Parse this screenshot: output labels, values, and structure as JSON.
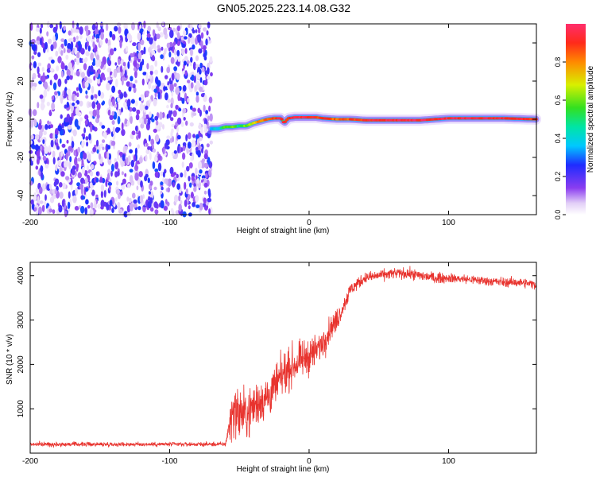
{
  "title": "GN05.2025.223.14.08.G32",
  "chart_data": [
    {
      "type": "heatmap",
      "xlabel": "Height of straight line (km)",
      "ylabel": "Frequency (Hz)",
      "xlim": [
        -200,
        163
      ],
      "ylim": [
        -50,
        50
      ],
      "x_ticks": [
        "-200",
        "-100",
        "0",
        "100"
      ],
      "y_ticks": [
        "-40",
        "-20",
        "0",
        "20",
        "40"
      ],
      "colorbar": {
        "label": "Normalized spectral amplitude",
        "range": [
          0,
          1
        ],
        "ticks": [
          "0.0",
          "0.2",
          "0.4",
          "0.6",
          "0.8"
        ]
      },
      "noise_region_x": [
        -200,
        -70
      ],
      "signal_trace": {
        "x": [
          -70,
          -65,
          -60,
          -55,
          -50,
          -45,
          -40,
          -35,
          -30,
          -25,
          -20,
          -18,
          -15,
          -10,
          -5,
          0,
          5,
          10,
          20,
          30,
          40,
          60,
          80,
          100,
          120,
          140,
          163
        ],
        "frequency": [
          -5,
          -5,
          -4,
          -4,
          -3.5,
          -3.5,
          -2,
          -1,
          0,
          0.5,
          0.5,
          -2,
          0.5,
          1,
          1,
          1,
          1,
          0.5,
          0,
          0,
          -0.5,
          -0.5,
          -0.5,
          0.5,
          0.5,
          0.5,
          0
        ],
        "amplitude": [
          0.35,
          0.4,
          0.55,
          0.6,
          0.5,
          0.6,
          0.7,
          0.8,
          0.85,
          0.9,
          0.95,
          0.9,
          0.9,
          0.95,
          0.95,
          0.95,
          0.9,
          0.9,
          0.85,
          0.85,
          0.9,
          0.95,
          0.95,
          0.95,
          0.95,
          0.95,
          0.9
        ]
      }
    },
    {
      "type": "line",
      "xlabel": "Height of straight line (km)",
      "ylabel": "SNR (10 * v/v)",
      "xlim": [
        -200,
        163
      ],
      "ylim": [
        0,
        4300
      ],
      "x_ticks": [
        "-200",
        "-100",
        "0",
        "100"
      ],
      "y_ticks": [
        "1000",
        "2000",
        "3000",
        "4000"
      ],
      "color": "#e8332e",
      "series": [
        {
          "x": [
            -200,
            -150,
            -100,
            -60,
            -55,
            -50,
            -45,
            -40,
            -35,
            -30,
            -25,
            -20,
            -15,
            -10,
            -5,
            0,
            5,
            10,
            15,
            20,
            25,
            30,
            40,
            50,
            60,
            70,
            80,
            90,
            100,
            120,
            140,
            150,
            163
          ],
          "values": [
            200,
            200,
            200,
            200,
            950,
            900,
            850,
            1050,
            1200,
            1250,
            1450,
            1700,
            1900,
            2000,
            2100,
            2200,
            2300,
            2500,
            2800,
            3000,
            3350,
            3700,
            3950,
            4000,
            4050,
            4050,
            4000,
            3950,
            3950,
            3900,
            3850,
            3850,
            3800
          ],
          "noise": [
            60,
            60,
            60,
            60,
            700,
            750,
            700,
            650,
            650,
            600,
            600,
            550,
            550,
            500,
            500,
            500,
            450,
            400,
            350,
            300,
            250,
            200,
            150,
            150,
            150,
            150,
            150,
            150,
            130,
            130,
            130,
            130,
            130
          ]
        }
      ]
    }
  ]
}
